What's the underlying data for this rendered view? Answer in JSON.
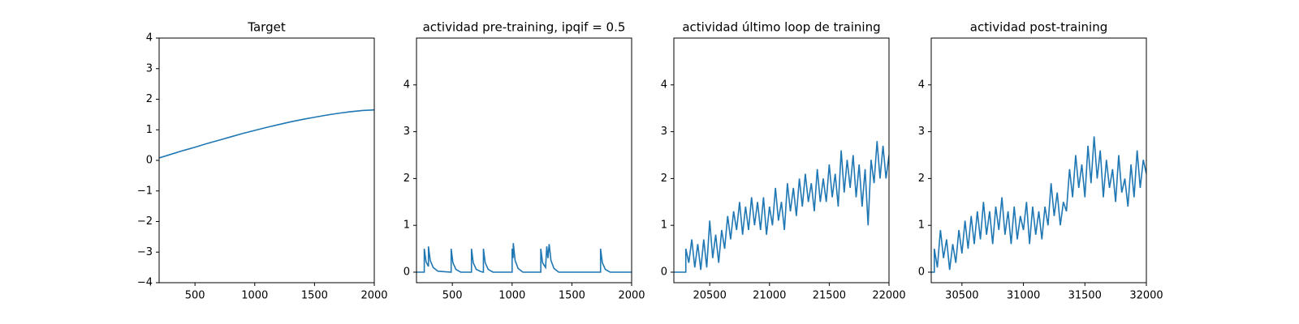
{
  "chart_data": [
    {
      "type": "line",
      "title": "Target",
      "color": "#1f77b4",
      "x": [
        200,
        300,
        400,
        500,
        600,
        700,
        800,
        900,
        1000,
        1100,
        1200,
        1300,
        1400,
        1500,
        1600,
        1700,
        1800,
        1900,
        2000
      ],
      "values": [
        0.08,
        0.2,
        0.32,
        0.43,
        0.55,
        0.66,
        0.77,
        0.88,
        0.98,
        1.08,
        1.17,
        1.26,
        1.34,
        1.41,
        1.48,
        1.54,
        1.59,
        1.63,
        1.65
      ],
      "xlim": [
        200,
        2000
      ],
      "ylim": [
        -4,
        4
      ],
      "xticks": [
        500,
        1000,
        1500,
        2000
      ],
      "yticks": [
        {
          "value": -4,
          "label": "−4"
        },
        {
          "value": -3,
          "label": "−3"
        },
        {
          "value": -2,
          "label": "−2"
        },
        {
          "value": -1,
          "label": "−1"
        },
        0,
        1,
        2,
        3,
        4
      ]
    },
    {
      "type": "line",
      "title": "actividad pre-training, ipqif = 0.5",
      "color": "#1f77b4",
      "x": [
        200,
        265,
        265,
        280,
        300,
        300,
        315,
        340,
        380,
        490,
        490,
        505,
        530,
        570,
        660,
        660,
        675,
        700,
        740,
        760,
        760,
        775,
        800,
        840,
        1000,
        1000,
        1008,
        1010,
        1025,
        1050,
        1090,
        1240,
        1240,
        1255,
        1280,
        1290,
        1300,
        1310,
        1325,
        1350,
        1390,
        1740,
        1740,
        1755,
        1780,
        1820,
        2000
      ],
      "values": [
        0,
        0,
        0.5,
        0.22,
        0.12,
        0.55,
        0.25,
        0.1,
        0.02,
        0,
        0.5,
        0.2,
        0.06,
        0,
        0,
        0.5,
        0.2,
        0.06,
        0.01,
        0,
        0.5,
        0.2,
        0.06,
        0,
        0,
        0.5,
        0.3,
        0.62,
        0.25,
        0.08,
        0,
        0,
        0.5,
        0.2,
        0.1,
        0.55,
        0.3,
        0.6,
        0.25,
        0.08,
        0,
        0,
        0.5,
        0.2,
        0.06,
        0,
        0
      ],
      "xlim": [
        200,
        2000
      ],
      "ylim": [
        -0.225,
        5.0
      ],
      "xticks": [
        500,
        1000,
        1500,
        2000
      ],
      "yticks": [
        0,
        1,
        2,
        3,
        4
      ]
    },
    {
      "type": "line",
      "title": "actividad último loop de training",
      "color": "#1f77b4",
      "x": [
        20200,
        20300,
        20300,
        20325,
        20350,
        20375,
        20400,
        20425,
        20450,
        20475,
        20500,
        20525,
        20550,
        20575,
        20600,
        20625,
        20650,
        20675,
        20700,
        20725,
        20750,
        20775,
        20800,
        20825,
        20850,
        20875,
        20900,
        20925,
        20950,
        20975,
        21000,
        21025,
        21050,
        21075,
        21100,
        21125,
        21150,
        21175,
        21200,
        21225,
        21250,
        21275,
        21300,
        21325,
        21350,
        21375,
        21400,
        21425,
        21450,
        21475,
        21500,
        21525,
        21550,
        21575,
        21600,
        21625,
        21650,
        21675,
        21700,
        21725,
        21750,
        21775,
        21800,
        21825,
        21850,
        21875,
        21900,
        21925,
        21950,
        21975,
        22000
      ],
      "values": [
        0,
        0,
        0.5,
        0.2,
        0.7,
        0.1,
        0.6,
        0.05,
        0.7,
        0.1,
        1.1,
        0.3,
        0.8,
        0.2,
        0.9,
        0.5,
        1.2,
        0.7,
        1.3,
        0.9,
        1.5,
        0.8,
        1.4,
        0.9,
        1.6,
        1.0,
        1.5,
        0.9,
        1.6,
        0.8,
        1.4,
        1.0,
        1.8,
        1.1,
        1.5,
        0.9,
        1.9,
        1.3,
        1.8,
        1.2,
        2.0,
        1.4,
        2.1,
        1.5,
        1.9,
        1.3,
        2.2,
        1.5,
        2.0,
        1.5,
        2.3,
        1.6,
        2.1,
        1.4,
        2.6,
        1.7,
        2.4,
        1.8,
        2.5,
        1.6,
        2.3,
        1.4,
        2.2,
        1.0,
        2.4,
        1.9,
        2.8,
        2.0,
        2.7,
        2.0,
        2.5
      ],
      "xlim": [
        20200,
        22000
      ],
      "ylim": [
        -0.225,
        5.0
      ],
      "xticks": [
        20500,
        21000,
        21500,
        22000
      ],
      "yticks": [
        0,
        1,
        2,
        3,
        4
      ]
    },
    {
      "type": "line",
      "title": "actividad post-training",
      "color": "#1f77b4",
      "x": [
        30250,
        30275,
        30275,
        30300,
        30325,
        30350,
        30375,
        30400,
        30425,
        30450,
        30475,
        30500,
        30525,
        30550,
        30575,
        30600,
        30625,
        30650,
        30675,
        30700,
        30725,
        30750,
        30775,
        30800,
        30825,
        30850,
        30875,
        30900,
        30925,
        30950,
        30975,
        31000,
        31025,
        31050,
        31075,
        31100,
        31125,
        31150,
        31175,
        31200,
        31225,
        31250,
        31275,
        31300,
        31325,
        31350,
        31375,
        31400,
        31425,
        31450,
        31475,
        31500,
        31525,
        31550,
        31575,
        31600,
        31625,
        31650,
        31675,
        31700,
        31725,
        31750,
        31775,
        31800,
        31825,
        31850,
        31875,
        31900,
        31925,
        31950,
        31975,
        32000
      ],
      "values": [
        0,
        0,
        0.5,
        0.1,
        0.9,
        0.3,
        0.7,
        0.05,
        0.6,
        0.2,
        0.9,
        0.4,
        1.1,
        0.5,
        1.2,
        0.6,
        1.3,
        0.7,
        1.5,
        0.8,
        1.3,
        0.6,
        1.4,
        0.9,
        1.6,
        0.8,
        1.3,
        0.6,
        1.4,
        0.7,
        1.2,
        0.9,
        1.5,
        0.6,
        1.4,
        0.8,
        1.3,
        0.7,
        1.4,
        1.0,
        1.9,
        1.2,
        1.7,
        1.0,
        1.5,
        1.3,
        2.2,
        1.6,
        2.5,
        1.8,
        2.3,
        1.6,
        2.7,
        1.9,
        2.9,
        2.0,
        2.6,
        1.6,
        2.4,
        1.8,
        2.2,
        1.5,
        2.5,
        1.7,
        2.0,
        1.4,
        2.3,
        1.6,
        2.6,
        1.8,
        2.4,
        2.1
      ],
      "xlim": [
        30250,
        32000
      ],
      "ylim": [
        -0.225,
        5.0
      ],
      "xticks": [
        30500,
        31000,
        31500,
        32000
      ],
      "yticks": [
        0,
        1,
        2,
        3,
        4
      ]
    }
  ]
}
